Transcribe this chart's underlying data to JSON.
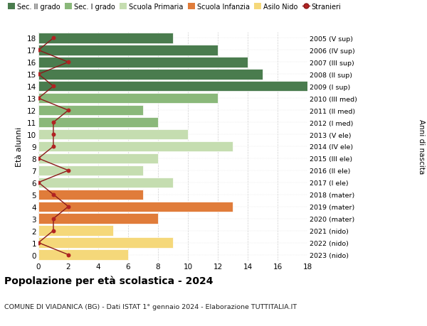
{
  "ages": [
    18,
    17,
    16,
    15,
    14,
    13,
    12,
    11,
    10,
    9,
    8,
    7,
    6,
    5,
    4,
    3,
    2,
    1,
    0
  ],
  "labels_right": [
    "2005 (V sup)",
    "2006 (IV sup)",
    "2007 (III sup)",
    "2008 (II sup)",
    "2009 (I sup)",
    "2010 (III med)",
    "2011 (II med)",
    "2012 (I med)",
    "2013 (V ele)",
    "2014 (IV ele)",
    "2015 (III ele)",
    "2016 (II ele)",
    "2017 (I ele)",
    "2018 (mater)",
    "2019 (mater)",
    "2020 (mater)",
    "2021 (nido)",
    "2022 (nido)",
    "2023 (nido)"
  ],
  "bar_values": [
    9,
    12,
    14,
    15,
    18,
    12,
    7,
    8,
    10,
    13,
    8,
    7,
    9,
    7,
    13,
    8,
    5,
    9,
    6
  ],
  "bar_colors": [
    "#4a7c4e",
    "#4a7c4e",
    "#4a7c4e",
    "#4a7c4e",
    "#4a7c4e",
    "#8ab87a",
    "#8ab87a",
    "#8ab87a",
    "#c5ddb0",
    "#c5ddb0",
    "#c5ddb0",
    "#c5ddb0",
    "#c5ddb0",
    "#e07c3a",
    "#e07c3a",
    "#e07c3a",
    "#f5d87a",
    "#f5d87a",
    "#f5d87a"
  ],
  "stranieri_values": [
    1,
    0,
    2,
    0,
    1,
    0,
    2,
    1,
    1,
    1,
    0,
    2,
    0,
    1,
    2,
    1,
    1,
    0,
    2
  ],
  "legend_labels": [
    "Sec. II grado",
    "Sec. I grado",
    "Scuola Primaria",
    "Scuola Infanzia",
    "Asilo Nido",
    "Stranieri"
  ],
  "legend_colors": [
    "#4a7c4e",
    "#8ab87a",
    "#c5ddb0",
    "#e07c3a",
    "#f5d87a",
    "#b22222"
  ],
  "title": "Popolazione per età scolastica - 2024",
  "subtitle": "COMUNE DI VIADANICA (BG) - Dati ISTAT 1° gennaio 2024 - Elaborazione TUTTITALIA.IT",
  "ylabel_left": "Età alunni",
  "ylabel_right": "Anni di nascita",
  "xticks": [
    0,
    2,
    4,
    6,
    8,
    10,
    12,
    14,
    16,
    18
  ],
  "xlim": [
    0,
    19
  ],
  "background_color": "#ffffff",
  "grid_color": "#cccccc"
}
